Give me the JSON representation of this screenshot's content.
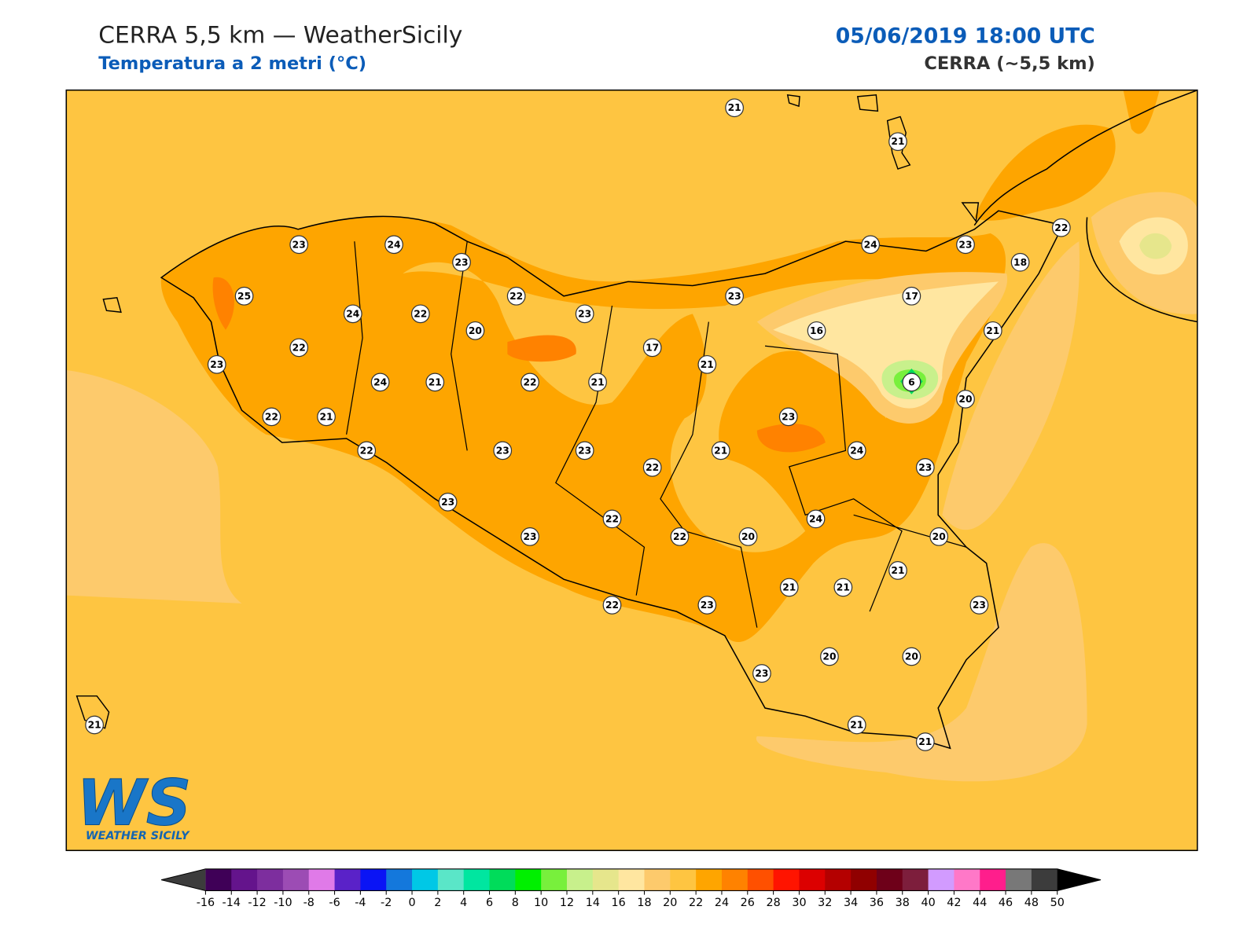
{
  "header": {
    "title": "CERRA 5,5 km — WeatherSicily",
    "subtitle": "Temperatura a 2 metri (°C)",
    "datetime": "05/06/2019 18:00 UTC",
    "model": "CERRA (~5,5 km)"
  },
  "stations": [
    {
      "value": 21
    },
    {
      "value": 21
    },
    {
      "value": 23
    },
    {
      "value": 24
    },
    {
      "value": 23
    },
    {
      "value": 24
    },
    {
      "value": 23
    },
    {
      "value": 22
    },
    {
      "value": 18
    },
    {
      "value": 25
    },
    {
      "value": 24
    },
    {
      "value": 22
    },
    {
      "value": 22
    },
    {
      "value": 23
    },
    {
      "value": 23
    },
    {
      "value": 17
    },
    {
      "value": 20
    },
    {
      "value": 16
    },
    {
      "value": 21
    },
    {
      "value": 22
    },
    {
      "value": 17
    },
    {
      "value": 23
    },
    {
      "value": 21
    },
    {
      "value": 24
    },
    {
      "value": 21
    },
    {
      "value": 22
    },
    {
      "value": 21
    },
    {
      "value": 6
    },
    {
      "value": 20
    },
    {
      "value": 22
    },
    {
      "value": 21
    },
    {
      "value": 23
    },
    {
      "value": 22
    },
    {
      "value": 23
    },
    {
      "value": 23
    },
    {
      "value": 21
    },
    {
      "value": 24
    },
    {
      "value": 23
    },
    {
      "value": 22
    },
    {
      "value": 23
    },
    {
      "value": 24
    },
    {
      "value": 22
    },
    {
      "value": 23
    },
    {
      "value": 22
    },
    {
      "value": 20
    },
    {
      "value": 20
    },
    {
      "value": 21
    },
    {
      "value": 21
    },
    {
      "value": 21
    },
    {
      "value": 23
    },
    {
      "value": 22
    },
    {
      "value": 23
    },
    {
      "value": 23
    },
    {
      "value": 20
    },
    {
      "value": 20
    },
    {
      "value": 21
    },
    {
      "value": 21
    },
    {
      "value": 21
    }
  ],
  "colorbar": {
    "ticks": [
      -16,
      -14,
      -12,
      -10,
      -8,
      -6,
      -4,
      -2,
      0,
      2,
      4,
      6,
      8,
      10,
      12,
      14,
      16,
      18,
      20,
      22,
      24,
      26,
      28,
      30,
      32,
      34,
      36,
      38,
      40,
      42,
      44,
      46,
      48,
      50
    ],
    "colors": [
      "#3f0057",
      "#64148c",
      "#7d2e9e",
      "#9c4cb4",
      "#e07ae8",
      "#5a22c8",
      "#0a14f5",
      "#1478dc",
      "#00c8e6",
      "#5ae6c8",
      "#00e6a0",
      "#00dc5a",
      "#00f000",
      "#78f03c",
      "#c8f08c",
      "#e6e68c",
      "#ffe6a0",
      "#fdca6c",
      "#fec541",
      "#fea500",
      "#ff8200",
      "#ff5000",
      "#ff1400",
      "#dc0000",
      "#b40000",
      "#900000",
      "#6e0019",
      "#7d1e3c",
      "#d29bff",
      "#ff78c8",
      "#ff1e8c",
      "#787878",
      "#3c3c3c"
    ],
    "under_color": "#3c3c3c",
    "over_color": "#000000"
  },
  "logo": {
    "mark": "WS",
    "text": "WEATHER SICILY"
  }
}
